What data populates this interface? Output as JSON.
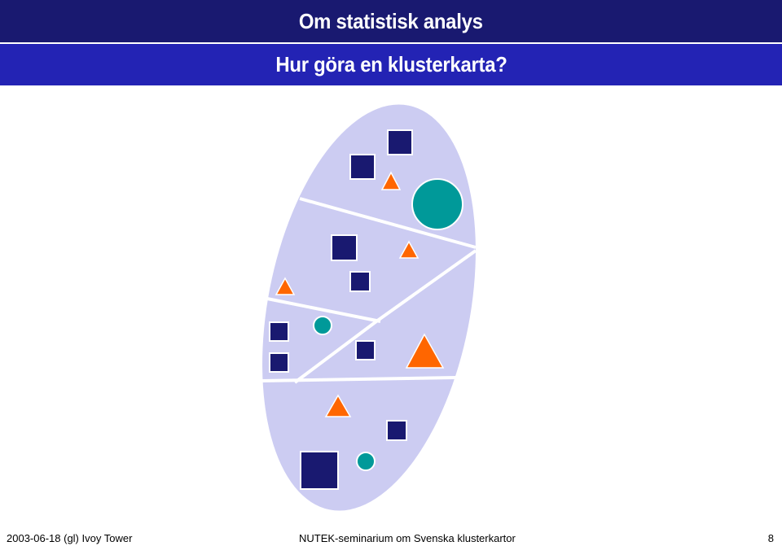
{
  "header": {
    "title": "Om statistisk analys",
    "subtitle": "Hur göra en klusterkarta?"
  },
  "footer": {
    "left": "2003-06-18 (gl) Ivoy Tower",
    "center": "NUTEK-seminarium om Svenska klusterkartor",
    "page": "8"
  },
  "colors": {
    "ellipse": "#ccccf2",
    "square": "#191970",
    "triangle": "#ff6600",
    "circle": "#009999",
    "divider": "#ffffff"
  },
  "shapes": {
    "squares": 9,
    "triangles": 5,
    "circles": 3
  }
}
